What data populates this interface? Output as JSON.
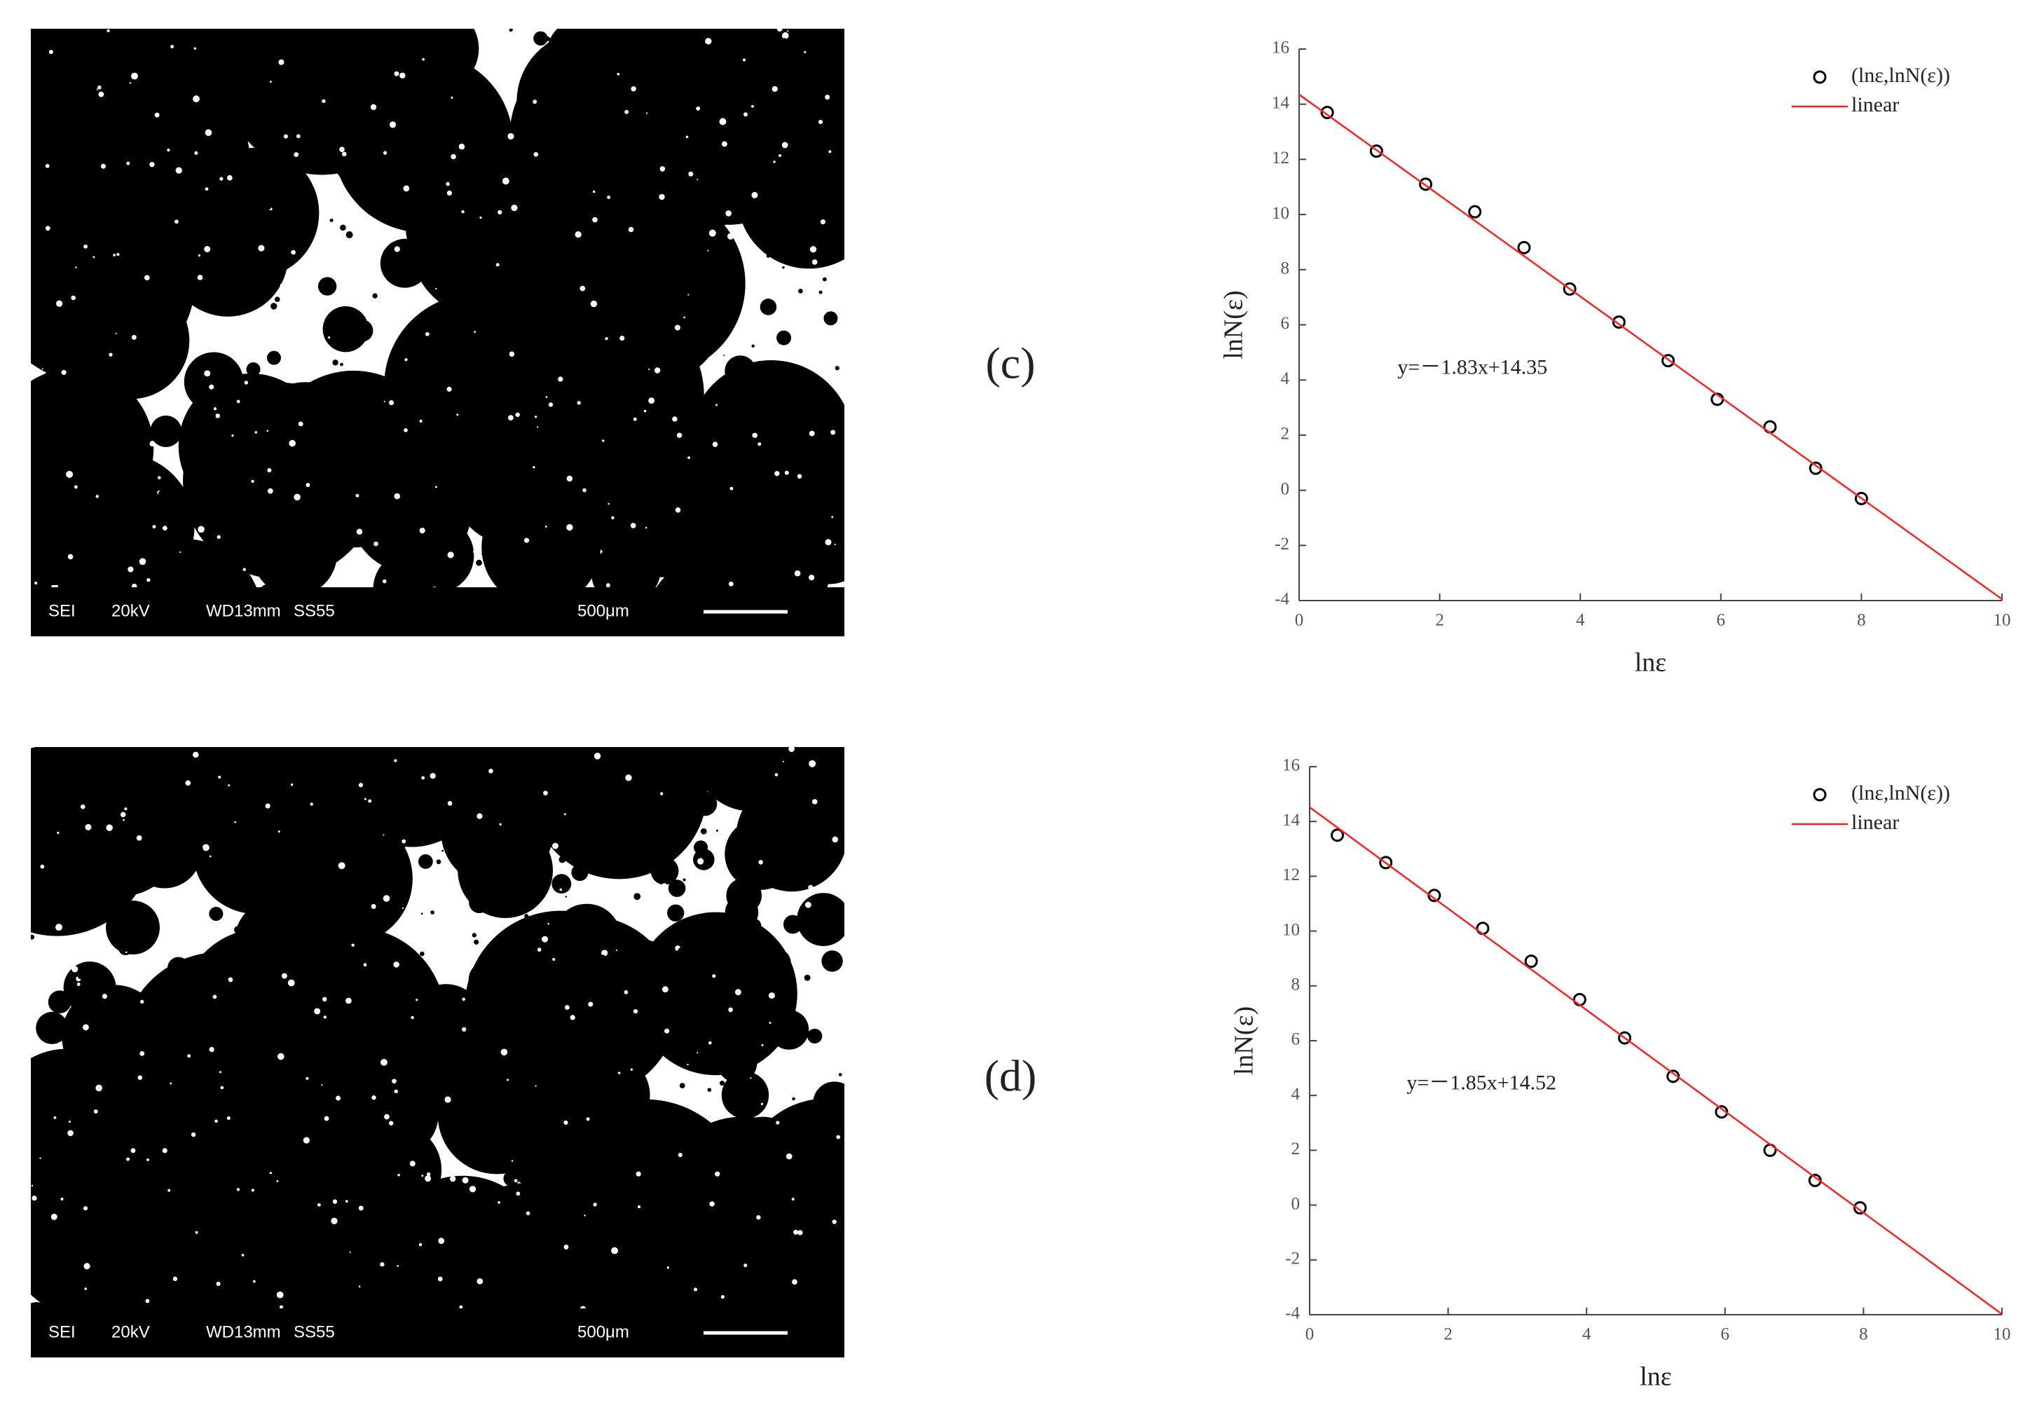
{
  "chart_data": [
    {
      "type": "scatter",
      "panel_label": "(c)",
      "x_label": "lnε",
      "y_label": "lnN(ε)",
      "annotation": "y=－1.83x+14.35",
      "xlim": [
        0,
        10
      ],
      "ylim": [
        -4,
        16
      ],
      "xticks": [
        0,
        2,
        4,
        6,
        8,
        10
      ],
      "yticks": [
        -4,
        -2,
        0,
        2,
        4,
        6,
        8,
        10,
        12,
        14,
        16
      ],
      "series": [
        {
          "name": "(lnε,lnN(ε))",
          "type": "scatter",
          "color": "#000000",
          "x": [
            0.4,
            1.1,
            1.8,
            2.5,
            3.2,
            3.85,
            4.55,
            5.25,
            5.95,
            6.7,
            7.35,
            8.0
          ],
          "values": [
            13.7,
            12.3,
            11.1,
            10.1,
            8.8,
            7.3,
            6.1,
            4.7,
            3.3,
            2.3,
            0.8,
            -0.3
          ]
        },
        {
          "name": "linear",
          "type": "line",
          "color": "#ff2020",
          "x": [
            0,
            10
          ],
          "values": [
            14.35,
            -3.95
          ]
        }
      ]
    },
    {
      "type": "scatter",
      "panel_label": "(d)",
      "x_label": "lnε",
      "y_label": "lnN(ε)",
      "annotation": "y=－1.85x+14.52",
      "xlim": [
        0,
        10
      ],
      "ylim": [
        -4,
        16
      ],
      "xticks": [
        0,
        2,
        4,
        6,
        8,
        10
      ],
      "yticks": [
        -4,
        -2,
        0,
        2,
        4,
        6,
        8,
        10,
        12,
        14,
        16
      ],
      "series": [
        {
          "name": "(lnε,lnN(ε))",
          "type": "scatter",
          "color": "#000000",
          "x": [
            0.4,
            1.1,
            1.8,
            2.5,
            3.2,
            3.9,
            4.55,
            5.25,
            5.95,
            6.65,
            7.3,
            7.95
          ],
          "values": [
            13.5,
            12.5,
            11.3,
            10.1,
            8.9,
            7.5,
            6.1,
            4.7,
            3.4,
            2.0,
            0.9,
            -0.1
          ]
        },
        {
          "name": "linear",
          "type": "line",
          "color": "#ff2020",
          "x": [
            0,
            10
          ],
          "values": [
            14.52,
            -3.98
          ]
        }
      ]
    }
  ],
  "images": [
    {
      "labels": [
        "SEI",
        "20kV",
        "WD13mm",
        "SS55",
        "500μm"
      ]
    },
    {
      "labels": [
        "SEI",
        "20kV",
        "WD13mm",
        "SS55",
        "500μm"
      ]
    }
  ]
}
